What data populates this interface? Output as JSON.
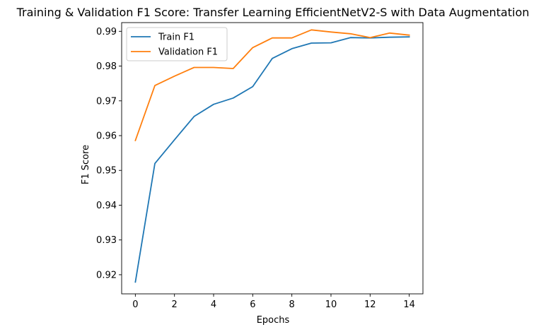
{
  "chart_data": {
    "type": "line",
    "title": "Training & Validation F1 Score: Transfer Learning EfficientNetV2-S with Data Augmentation",
    "xlabel": "Epochs",
    "ylabel": "F1 Score",
    "x": [
      0,
      1,
      2,
      3,
      4,
      5,
      6,
      7,
      8,
      9,
      10,
      11,
      12,
      13,
      14
    ],
    "xlim": [
      -0.7,
      14.7
    ],
    "ylim": [
      0.9145,
      0.9925
    ],
    "x_ticks": [
      "0",
      "2",
      "4",
      "6",
      "8",
      "10",
      "12",
      "14"
    ],
    "y_ticks": [
      "0.92",
      "0.93",
      "0.94",
      "0.95",
      "0.96",
      "0.97",
      "0.98",
      "0.99"
    ],
    "grid": false,
    "legend_position": "upper-left",
    "series": [
      {
        "name": "Train F1",
        "color": "#1f77b4",
        "values": [
          0.9179,
          0.952,
          0.9588,
          0.9655,
          0.969,
          0.9708,
          0.9741,
          0.9822,
          0.985,
          0.9866,
          0.9867,
          0.9882,
          0.9881,
          0.9883,
          0.9884
        ]
      },
      {
        "name": "Validation F1",
        "color": "#ff7f0e",
        "values": [
          0.9586,
          0.9744,
          0.9771,
          0.9796,
          0.9796,
          0.9793,
          0.9853,
          0.9881,
          0.9881,
          0.9904,
          0.9898,
          0.9893,
          0.9882,
          0.9895,
          0.9889
        ]
      }
    ]
  }
}
